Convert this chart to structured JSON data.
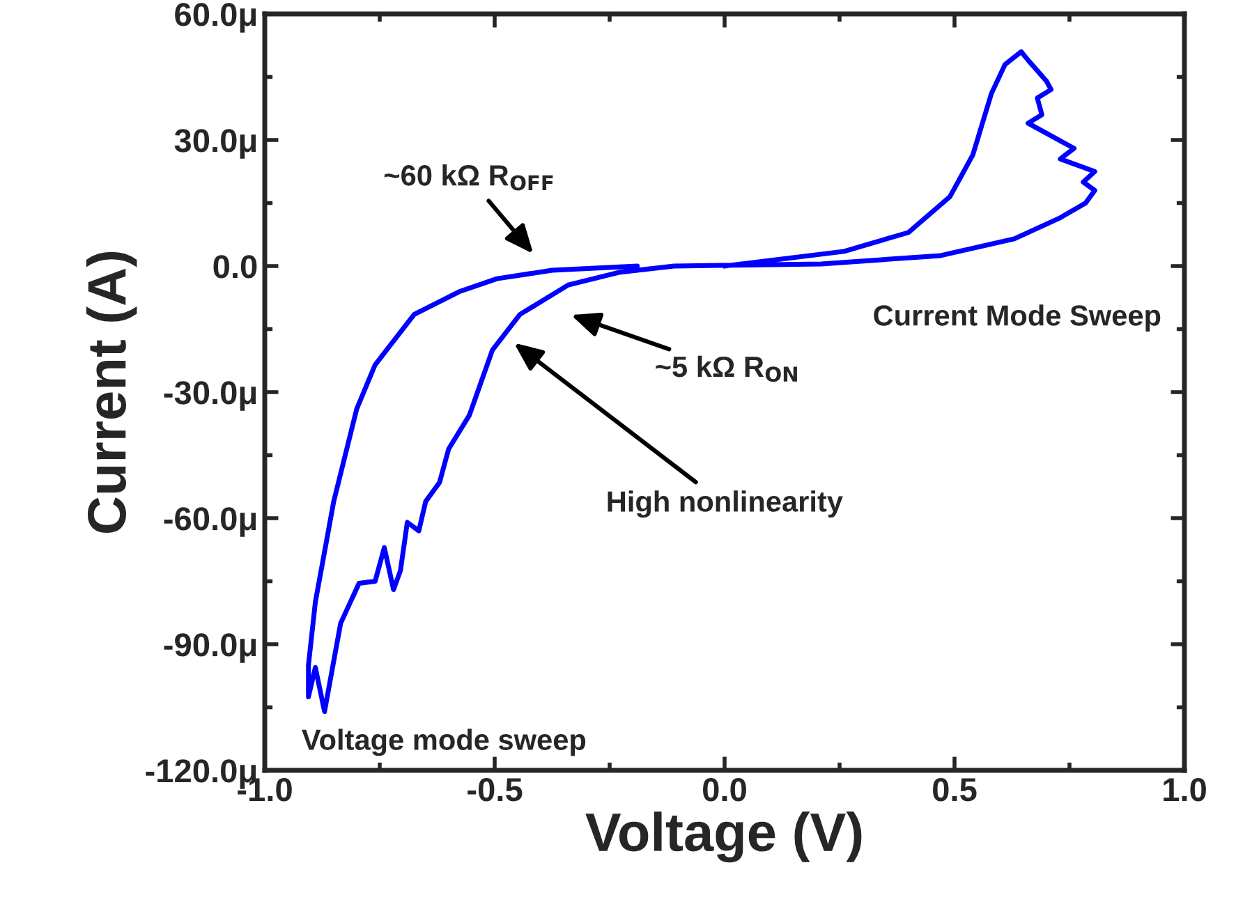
{
  "chart_data": {
    "type": "line",
    "xlabel": "Voltage (V)",
    "ylabel": "Current (A)",
    "xlim": [
      -1.0,
      1.0
    ],
    "ylim": [
      -120,
      60
    ],
    "xticks": [
      {
        "value": -1.0,
        "label": "-1.0"
      },
      {
        "value": -0.5,
        "label": "-0.5"
      },
      {
        "value": 0.0,
        "label": "0.0"
      },
      {
        "value": 0.5,
        "label": "0.5"
      },
      {
        "value": 1.0,
        "label": "1.0"
      }
    ],
    "yticks": [
      {
        "value": -120,
        "label": "-120.0μ"
      },
      {
        "value": -90,
        "label": "-90.0μ"
      },
      {
        "value": -60,
        "label": "-60.0μ"
      },
      {
        "value": -30,
        "label": "-30.0μ"
      },
      {
        "value": 0,
        "label": "0.0"
      },
      {
        "value": 30,
        "label": "30.0μ"
      },
      {
        "value": 60,
        "label": "60.0μ"
      }
    ],
    "grid": false,
    "legend": false,
    "marker": "none",
    "line_style": "solid",
    "series": [
      {
        "color": "#0000ff",
        "x": [
          0.0,
          0.26,
          0.4,
          0.49,
          0.54,
          0.58,
          0.61,
          0.645,
          0.66,
          0.7,
          0.71,
          0.68,
          0.69,
          0.66,
          0.76,
          0.73,
          0.805,
          0.78,
          0.805,
          0.785,
          0.73,
          0.63,
          0.47,
          0.21,
          -0.11,
          -0.23,
          -0.34,
          -0.445,
          -0.505,
          -0.555,
          -0.6,
          -0.62,
          -0.65,
          -0.665,
          -0.69,
          -0.705,
          -0.72,
          -0.74,
          -0.76,
          -0.795,
          -0.835,
          -0.87,
          -0.89,
          -0.905,
          -0.905,
          -0.89,
          -0.85,
          -0.8,
          -0.76,
          -0.675,
          -0.575,
          -0.495,
          -0.375,
          -0.19
        ],
        "values": [
          0,
          3.5,
          8,
          16.5,
          26.5,
          41,
          48,
          51,
          49,
          44,
          42,
          40,
          36,
          34,
          28,
          25.5,
          22.5,
          20,
          18,
          15,
          11.5,
          6.5,
          2.5,
          0.5,
          0,
          -1.5,
          -4.5,
          -11.5,
          -20,
          -35.5,
          -43.5,
          -51.5,
          -56,
          -63,
          -61,
          -72.5,
          -77,
          -67,
          -75,
          -75.5,
          -85,
          -106,
          -95.5,
          -102.5,
          -95,
          -80,
          -56,
          -34,
          -23.5,
          -11.5,
          -6,
          -3,
          -1,
          0
        ]
      }
    ],
    "annotations": [
      "~60 kΩ R$_{OFF}$",
      "~5 kΩ R$_{ON}$",
      "High nonlinearity",
      "Current Mode Sweep",
      "Voltage mode sweep"
    ]
  }
}
